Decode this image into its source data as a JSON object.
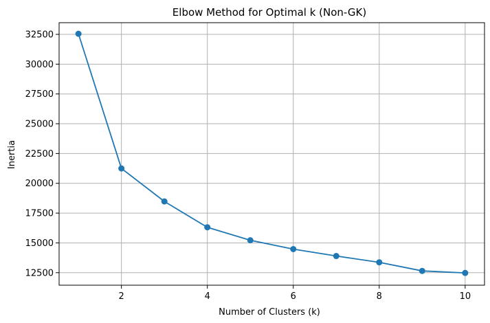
{
  "chart_data": {
    "type": "line",
    "title": "Elbow Method for Optimal k (Non-GK)",
    "xlabel": "Number of Clusters (k)",
    "ylabel": "Inertia",
    "x": [
      1,
      2,
      3,
      4,
      5,
      6,
      7,
      8,
      9,
      10
    ],
    "series": [
      {
        "values": [
          32550,
          21250,
          18480,
          16310,
          15220,
          14480,
          13900,
          13370,
          12650,
          12480
        ],
        "color": "#1f77b4",
        "marker": "circle"
      }
    ],
    "xlim": [
      0.55,
      10.45
    ],
    "ylim": [
      11450,
      33480
    ],
    "xticks": [
      2,
      4,
      6,
      8,
      10
    ],
    "yticks": [
      12500,
      15000,
      17500,
      20000,
      22500,
      25000,
      27500,
      30000,
      32500
    ],
    "xtick_labels": [
      "2",
      "4",
      "6",
      "8",
      "10"
    ],
    "ytick_labels": [
      "12500",
      "15000",
      "17500",
      "20000",
      "22500",
      "25000",
      "27500",
      "30000",
      "32500"
    ],
    "grid": true
  }
}
